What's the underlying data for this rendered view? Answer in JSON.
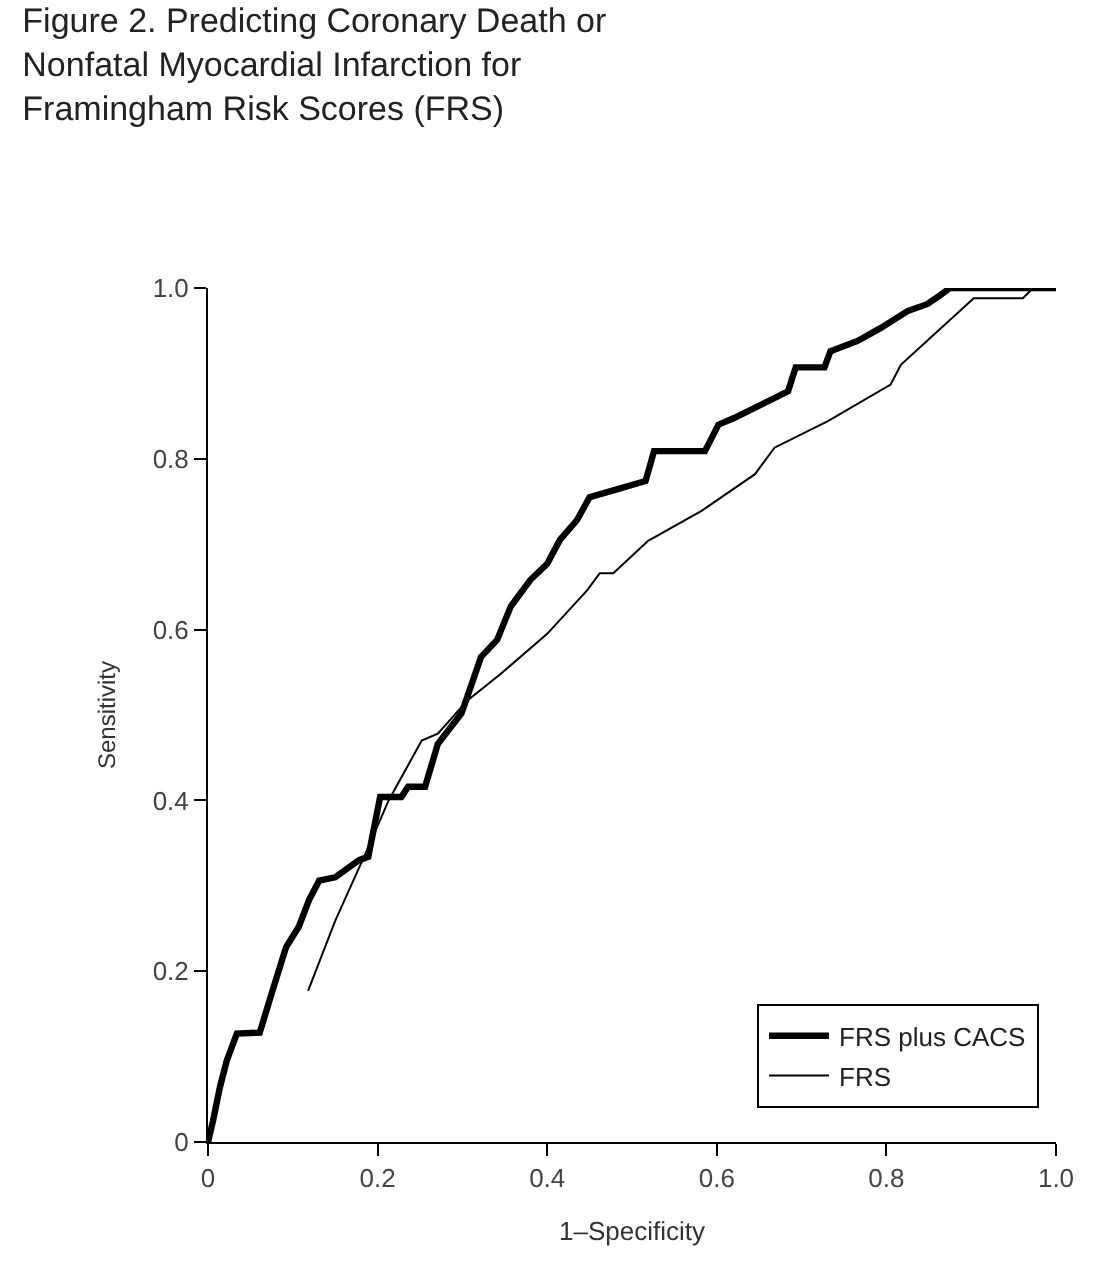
{
  "chart_data": {
    "type": "line",
    "title": "Figure 2. Predicting Coronary Death or Nonfatal Myocardial Infarction for Framingham Risk Scores (FRS)",
    "xlabel": "1–Specificity",
    "ylabel": "Sensitivity",
    "xlim": [
      0,
      1
    ],
    "ylim": [
      0,
      1
    ],
    "xticks": [
      0,
      {
        "value": 0.2,
        "label": "0.2"
      },
      {
        "value": 0.4,
        "label": "0.4"
      },
      {
        "value": 0.6,
        "label": "0.6"
      },
      {
        "value": 0.8,
        "label": "0.8"
      },
      {
        "value": 1,
        "label": "1.0"
      }
    ],
    "yticks": [
      0,
      {
        "value": 0.2,
        "label": "0.2"
      },
      {
        "value": 0.4,
        "label": "0.4"
      },
      {
        "value": 0.6,
        "label": "0.6"
      },
      {
        "value": 0.8,
        "label": "0.8"
      },
      {
        "value": 1,
        "label": "1.0"
      }
    ],
    "legend": "bottom right",
    "marker": "none",
    "line_style": "solid",
    "series": [
      {
        "name": "FRS plus CACS",
        "color": "#000000",
        "x": [
          0,
          0.006,
          0.014,
          0.022,
          0.034,
          0.061,
          0.076,
          0.092,
          0.107,
          0.119,
          0.131,
          0.15,
          0.178,
          0.189,
          0.203,
          0.228,
          0.236,
          0.256,
          0.271,
          0.299,
          0.322,
          0.341,
          0.357,
          0.38,
          0.4,
          0.415,
          0.435,
          0.45,
          0.478,
          0.516,
          0.526,
          0.586,
          0.602,
          0.621,
          0.684,
          0.693,
          0.727,
          0.734,
          0.766,
          0.793,
          0.825,
          0.848,
          0.864,
          0.875,
          1
        ],
        "values": [
          0,
          0.025,
          0.064,
          0.095,
          0.127,
          0.128,
          0.177,
          0.228,
          0.252,
          0.283,
          0.306,
          0.31,
          0.33,
          0.334,
          0.404,
          0.404,
          0.416,
          0.416,
          0.466,
          0.502,
          0.568,
          0.588,
          0.627,
          0.658,
          0.677,
          0.705,
          0.728,
          0.755,
          0.763,
          0.774,
          0.809,
          0.809,
          0.84,
          0.848,
          0.879,
          0.907,
          0.907,
          0.926,
          0.938,
          0.953,
          0.973,
          0.981,
          0.992,
          1,
          1
        ]
      },
      {
        "name": "FRS",
        "color": "#000000",
        "x": [
          0.118,
          0.15,
          0.189,
          0.213,
          0.252,
          0.271,
          0.306,
          0.345,
          0.4,
          0.447,
          0.462,
          0.478,
          0.519,
          0.582,
          0.645,
          0.668,
          0.731,
          0.805,
          0.817,
          0.903,
          0.961,
          0.973,
          1
        ],
        "values": [
          0.177,
          0.259,
          0.345,
          0.4,
          0.47,
          0.478,
          0.517,
          0.548,
          0.595,
          0.646,
          0.666,
          0.666,
          0.704,
          0.739,
          0.782,
          0.813,
          0.844,
          0.887,
          0.91,
          0.988,
          0.988,
          1,
          1
        ]
      }
    ]
  }
}
